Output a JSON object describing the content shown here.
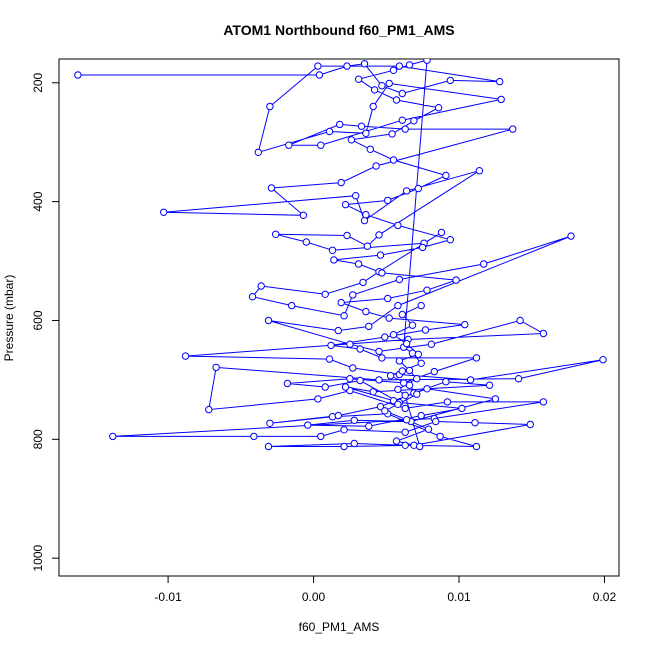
{
  "chart_data": {
    "type": "scatter",
    "title": "ATOM1 Northbound f60_PM1_AMS",
    "xlabel": "f60_PM1_AMS",
    "ylabel": "Pressure (mbar)",
    "xlim": [
      -0.0175,
      0.021
    ],
    "ylim": [
      1030,
      160
    ],
    "x_ticks": [
      -0.01,
      0.0,
      0.01,
      0.02
    ],
    "x_tick_labels": [
      "-0.01",
      "0.00",
      "0.01",
      "0.02"
    ],
    "y_ticks": [
      200,
      400,
      600,
      800,
      1000
    ],
    "y_tick_labels": [
      "200",
      "400",
      "600",
      "800",
      "1000"
    ],
    "grid": false,
    "legend": "none",
    "series": [
      {
        "color": "#0000ff",
        "marker": "open-circle",
        "connected": true,
        "points": [
          [
            -0.0162,
            187
          ],
          [
            0.0004,
            187
          ],
          [
            0.0023,
            172
          ],
          [
            0.0035,
            168
          ],
          [
            0.0047,
            205
          ],
          [
            0.0061,
            218
          ],
          [
            0.0094,
            196
          ],
          [
            0.0128,
            198
          ],
          [
            0.0059,
            172
          ],
          [
            0.0003,
            172
          ],
          [
            -0.003,
            240
          ],
          [
            -0.0038,
            317
          ],
          [
            0.0011,
            282
          ],
          [
            0.0036,
            285
          ],
          [
            0.0041,
            240
          ],
          [
            0.0052,
            201
          ],
          [
            0.0129,
            228
          ],
          [
            0.0061,
            263
          ],
          [
            0.0005,
            305
          ],
          [
            -0.0017,
            305
          ],
          [
            0.0018,
            270
          ],
          [
            0.0033,
            273
          ],
          [
            0.0063,
            278
          ],
          [
            0.0137,
            278
          ],
          [
            0.0043,
            340
          ],
          [
            0.0019,
            368
          ],
          [
            -0.0029,
            377
          ],
          [
            -0.0007,
            423
          ],
          [
            -0.0103,
            418
          ],
          [
            0.0029,
            390
          ],
          [
            0.0035,
            432
          ],
          [
            0.0064,
            382
          ],
          [
            0.0114,
            348
          ],
          [
            0.0045,
            456
          ],
          [
            0.0037,
            475
          ],
          [
            0.0023,
            457
          ],
          [
            -0.0026,
            455
          ],
          [
            -0.0005,
            468
          ],
          [
            0.0013,
            482
          ],
          [
            0.0076,
            470
          ],
          [
            0.0088,
            452
          ],
          [
            0.0045,
            518
          ],
          [
            0.0034,
            536
          ],
          [
            0.0008,
            556
          ],
          [
            -0.0036,
            542
          ],
          [
            -0.0042,
            560
          ],
          [
            -0.0015,
            575
          ],
          [
            0.0021,
            592
          ],
          [
            0.0027,
            557
          ],
          [
            0.0059,
            531
          ],
          [
            0.0117,
            505
          ],
          [
            0.0177,
            458
          ],
          [
            0.0058,
            575
          ],
          [
            0.0038,
            610
          ],
          [
            0.0017,
            617
          ],
          [
            -0.0031,
            600
          ],
          [
            0.0025,
            640
          ],
          [
            0.0045,
            652
          ],
          [
            0.0081,
            640
          ],
          [
            0.0142,
            600
          ],
          [
            0.0158,
            622
          ],
          [
            0.0065,
            632
          ],
          [
            -0.0088,
            660
          ],
          [
            0.0011,
            665
          ],
          [
            0.0027,
            680
          ],
          [
            0.0059,
            691
          ],
          [
            0.0108,
            700
          ],
          [
            0.0199,
            666
          ],
          [
            0.0141,
            698
          ],
          [
            0.0045,
            700
          ],
          [
            -0.0067,
            679
          ],
          [
            -0.0072,
            750
          ],
          [
            0.0003,
            732
          ],
          [
            0.0025,
            718
          ],
          [
            0.0063,
            748
          ],
          [
            0.0092,
            737
          ],
          [
            0.0158,
            737
          ],
          [
            0.0083,
            765
          ],
          [
            -0.0138,
            795
          ],
          [
            -0.0041,
            795
          ],
          [
            0.0005,
            795
          ],
          [
            0.0021,
            784
          ],
          [
            0.0063,
            788
          ],
          [
            0.0084,
            770
          ],
          [
            0.0111,
            772
          ],
          [
            0.0149,
            775
          ],
          [
            0.0069,
            810
          ],
          [
            0.0021,
            812
          ],
          [
            -0.0031,
            812
          ],
          [
            0.0028,
            807
          ],
          [
            0.0063,
            810
          ],
          [
            0.0112,
            812
          ],
          [
            0.0087,
            795
          ],
          [
            0.0051,
            757
          ],
          [
            0.0013,
            762
          ],
          [
            -0.003,
            773
          ],
          [
            0.0017,
            760
          ],
          [
            0.0046,
            745
          ],
          [
            0.0069,
            722
          ],
          [
            0.0091,
            703
          ],
          [
            0.0121,
            709
          ],
          [
            0.0041,
            720
          ],
          [
            0.0022,
            712
          ],
          [
            0.0055,
            735
          ],
          [
            0.0078,
            715
          ],
          [
            0.0125,
            732
          ],
          [
            0.0067,
            770
          ],
          [
            0.0028,
            768
          ],
          [
            -0.0004,
            776
          ],
          [
            0.0038,
            778
          ],
          [
            0.0074,
            760
          ],
          [
            0.0102,
            748
          ],
          [
            0.0059,
            738
          ],
          [
            0.0032,
            701
          ],
          [
            0.0008,
            712
          ],
          [
            -0.0018,
            706
          ],
          [
            0.0025,
            698
          ],
          [
            0.0062,
            705
          ],
          [
            0.0083,
            686
          ],
          [
            0.0112,
            663
          ],
          [
            0.0047,
            663
          ],
          [
            0.0032,
            648
          ],
          [
            0.0012,
            642
          ],
          [
            0.0049,
            628
          ],
          [
            0.0077,
            616
          ],
          [
            0.0104,
            607
          ],
          [
            0.0052,
            596
          ],
          [
            0.0036,
            585
          ],
          [
            0.0019,
            570
          ],
          [
            0.0051,
            563
          ],
          [
            0.0078,
            549
          ],
          [
            0.0098,
            532
          ],
          [
            0.0047,
            520
          ],
          [
            0.0031,
            505
          ],
          [
            0.0014,
            498
          ],
          [
            0.0046,
            490
          ],
          [
            0.0075,
            477
          ],
          [
            0.0094,
            464
          ],
          [
            0.0058,
            440
          ],
          [
            0.0036,
            422
          ],
          [
            0.0022,
            405
          ],
          [
            0.0051,
            398
          ],
          [
            0.0072,
            378
          ],
          [
            0.0091,
            356
          ],
          [
            0.0055,
            330
          ],
          [
            0.0039,
            312
          ],
          [
            0.0026,
            296
          ],
          [
            0.0054,
            286
          ],
          [
            0.0069,
            264
          ],
          [
            0.0086,
            242
          ],
          [
            0.0057,
            229
          ],
          [
            0.0042,
            212
          ],
          [
            0.0031,
            194
          ],
          [
            0.0055,
            179
          ],
          [
            0.0066,
            170
          ],
          [
            0.0078,
            162
          ],
          [
            0.0062,
            645
          ],
          [
            0.0068,
            655
          ],
          [
            0.0074,
            672
          ],
          [
            0.0061,
            685
          ],
          [
            0.0053,
            693
          ],
          [
            0.0066,
            709
          ],
          [
            0.0071,
            724
          ],
          [
            0.0058,
            741
          ],
          [
            0.0049,
            752
          ],
          [
            0.0064,
            767
          ],
          [
            0.0079,
            783
          ],
          [
            0.0057,
            803
          ],
          [
            0.0073,
            812
          ],
          [
            0.0063,
            726
          ],
          [
            0.0058,
            716
          ],
          [
            0.0071,
            698
          ],
          [
            0.0066,
            684
          ],
          [
            0.0059,
            668
          ],
          [
            0.0072,
            657
          ],
          [
            0.0064,
            639
          ],
          [
            0.0055,
            624
          ],
          [
            0.0068,
            608
          ],
          [
            0.0061,
            590
          ],
          [
            0.0074,
            575
          ]
        ]
      }
    ]
  }
}
